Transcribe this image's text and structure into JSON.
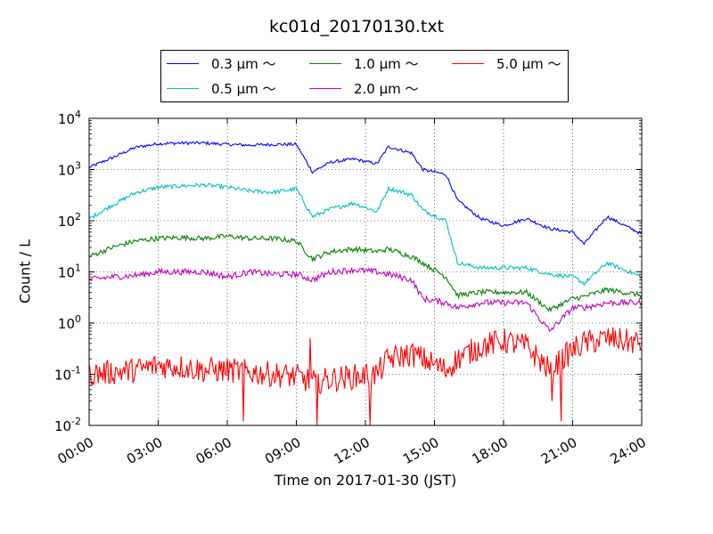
{
  "chart_data": {
    "type": "line",
    "title": "kc01d_20170130.txt",
    "xlabel": "Time on 2017-01-30 (JST)",
    "ylabel": "Count / L",
    "xlim": [
      "00:00",
      "24:00"
    ],
    "ylim": [
      0.01,
      10000
    ],
    "yscale": "log",
    "grid": true,
    "legend_position": "top",
    "x_ticks": [
      "00:00",
      "03:00",
      "06:00",
      "09:00",
      "12:00",
      "15:00",
      "18:00",
      "21:00",
      "24:00"
    ],
    "y_ticks": [
      {
        "base": "10",
        "exp": "-2"
      },
      {
        "base": "10",
        "exp": "-1"
      },
      {
        "base": "10",
        "exp": "0"
      },
      {
        "base": "10",
        "exp": "1"
      },
      {
        "base": "10",
        "exp": "2"
      },
      {
        "base": "10",
        "exp": "3"
      },
      {
        "base": "10",
        "exp": "4"
      }
    ],
    "x_hours": [
      0,
      1,
      2,
      3,
      4,
      5,
      6,
      7,
      8,
      9,
      9.7,
      10.5,
      11.5,
      12.5,
      13,
      14,
      14.5,
      15.5,
      16,
      17,
      18,
      19,
      20,
      21,
      21.5,
      22.5,
      24
    ],
    "series": [
      {
        "name": "0.3 μm ～",
        "color": "#0000ff",
        "noise": 0.03,
        "values": [
          1100,
          1700,
          2700,
          3200,
          3300,
          3300,
          3100,
          3000,
          3100,
          3100,
          900,
          1400,
          1600,
          1300,
          2800,
          2100,
          1000,
          800,
          250,
          110,
          80,
          110,
          70,
          60,
          35,
          120,
          55
        ]
      },
      {
        "name": "0.5 μm ～",
        "color": "#00bfbf",
        "noise": 0.04,
        "values": [
          110,
          200,
          350,
          450,
          480,
          500,
          450,
          380,
          360,
          420,
          120,
          170,
          220,
          150,
          430,
          320,
          160,
          100,
          15,
          12,
          12,
          12,
          9,
          8,
          6,
          15,
          8
        ]
      },
      {
        "name": "1.0 μm ～",
        "color": "#008000",
        "noise": 0.05,
        "values": [
          20,
          30,
          40,
          45,
          47,
          45,
          50,
          45,
          45,
          40,
          18,
          25,
          28,
          25,
          28,
          20,
          15,
          8,
          3.5,
          4,
          4,
          4,
          1.8,
          3,
          3.3,
          4.5,
          3.5
        ]
      },
      {
        "name": "2.0 μm ～",
        "color": "#bf00bf",
        "noise": 0.06,
        "values": [
          7,
          8,
          8.5,
          10,
          10,
          10,
          8,
          10,
          9,
          9,
          7,
          10,
          11,
          10,
          9,
          7,
          3,
          2.5,
          2,
          2.5,
          2.5,
          2.5,
          0.7,
          2.0,
          2.0,
          2.5,
          2.5
        ]
      },
      {
        "name": "5.0 μm ～",
        "color": "#ff0000",
        "noise": 0.25,
        "values": [
          0.1,
          0.11,
          0.12,
          0.15,
          0.14,
          0.12,
          0.12,
          0.11,
          0.1,
          0.09,
          0.07,
          0.08,
          0.09,
          0.1,
          0.2,
          0.25,
          0.2,
          0.12,
          0.2,
          0.35,
          0.45,
          0.35,
          0.12,
          0.3,
          0.4,
          0.5,
          0.4
        ]
      }
    ],
    "spikes": [
      {
        "series": 4,
        "x": 9.6,
        "value": 0.5
      },
      {
        "series": 4,
        "x": 9.9,
        "value": 0.01
      },
      {
        "series": 4,
        "x": 6.7,
        "value": 0.012
      },
      {
        "series": 4,
        "x": 12.2,
        "value": 0.01
      },
      {
        "series": 4,
        "x": 20.5,
        "value": 0.012
      },
      {
        "series": 4,
        "x": 20.1,
        "value": 0.03
      }
    ]
  }
}
